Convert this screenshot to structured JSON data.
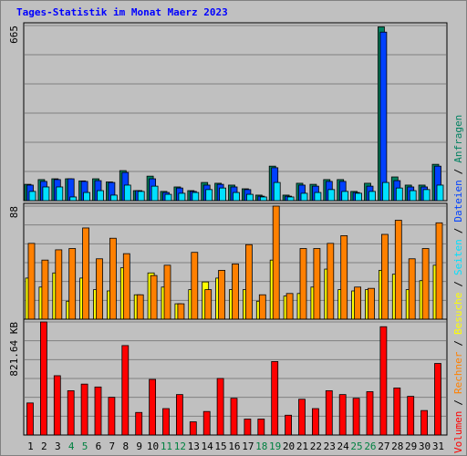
{
  "title": "Tages-Statistik im Monat Maerz 2023",
  "legend_separator": "/",
  "chart_data": [
    {
      "type": "bar",
      "ylim": [
        0,
        665
      ],
      "yticks": [
        665
      ],
      "grid": true,
      "series": [
        {
          "name": "Anfragen",
          "color": "#008060",
          "values": [
            62,
            80,
            83,
            83,
            75,
            83,
            71,
            114,
            38,
            93,
            35,
            52,
            38,
            69,
            66,
            59,
            45,
            21,
            131,
            21,
            66,
            62,
            80,
            80,
            35,
            66,
            660,
            90,
            59,
            59,
            138
          ]
        },
        {
          "name": "Dateien",
          "color": "#0040ff",
          "values": [
            59,
            73,
            80,
            83,
            73,
            76,
            69,
            107,
            38,
            83,
            31,
            48,
            35,
            59,
            62,
            52,
            42,
            17,
            125,
            17,
            59,
            55,
            73,
            73,
            31,
            55,
            640,
            76,
            52,
            52,
            131
          ]
        },
        {
          "name": "Seiten",
          "color": "#00e0ff",
          "values": [
            35,
            52,
            52,
            14,
            31,
            38,
            21,
            59,
            35,
            55,
            24,
            28,
            31,
            42,
            48,
            31,
            24,
            14,
            69,
            14,
            28,
            31,
            42,
            35,
            28,
            35,
            69,
            48,
            38,
            42,
            59
          ]
        }
      ]
    },
    {
      "type": "bar",
      "ylim": [
        0,
        88
      ],
      "yticks": [
        88
      ],
      "grid": true,
      "series": [
        {
          "name": "Besuche",
          "color": "#ffff00",
          "values": [
            32,
            25,
            36,
            14,
            32,
            23,
            22,
            40,
            19,
            36,
            25,
            12,
            23,
            29,
            32,
            23,
            23,
            14,
            46,
            18,
            20,
            25,
            39,
            23,
            22,
            23,
            38,
            35,
            23,
            30,
            42
          ]
        },
        {
          "name": "Rechner",
          "color": "#ff8000",
          "values": [
            59,
            46,
            54,
            55,
            71,
            47,
            63,
            51,
            19,
            34,
            42,
            12,
            52,
            23,
            38,
            43,
            58,
            19,
            88,
            20,
            55,
            55,
            59,
            65,
            25,
            24,
            66,
            77,
            47,
            55,
            75
          ]
        }
      ]
    },
    {
      "type": "bar",
      "ylim": [
        0,
        821.64
      ],
      "yticks": [
        {
          "value": 821.64,
          "label": "821.64 KB"
        }
      ],
      "grid": true,
      "categories": [
        "1",
        "2",
        "3",
        "4",
        "5",
        "6",
        "7",
        "8",
        "9",
        "10",
        "11",
        "12",
        "13",
        "14",
        "15",
        "16",
        "17",
        "18",
        "19",
        "20",
        "21",
        "22",
        "23",
        "24",
        "25",
        "26",
        "27",
        "28",
        "29",
        "30",
        "31"
      ],
      "category_colors": [
        "#000000",
        "#000000",
        "#000000",
        "#008040",
        "#008040",
        "#000000",
        "#000000",
        "#000000",
        "#000000",
        "#000000",
        "#008040",
        "#008040",
        "#000000",
        "#000000",
        "#000000",
        "#000000",
        "#000000",
        "#008040",
        "#008040",
        "#000000",
        "#000000",
        "#000000",
        "#000000",
        "#000000",
        "#008040",
        "#008040",
        "#000000",
        "#000000",
        "#000000",
        "#000000",
        "#000000"
      ],
      "series": [
        {
          "name": "Volumen",
          "color": "#ff0000",
          "values": [
            233,
            821.64,
            431,
            322,
            370,
            349,
            274,
            650,
            164,
            404,
            192,
            294,
            96,
            171,
            411,
            267,
            116,
            116,
            534,
            144,
            260,
            192,
            322,
            294,
            267,
            315,
            787,
            342,
            281,
            178,
            520
          ]
        }
      ]
    }
  ]
}
